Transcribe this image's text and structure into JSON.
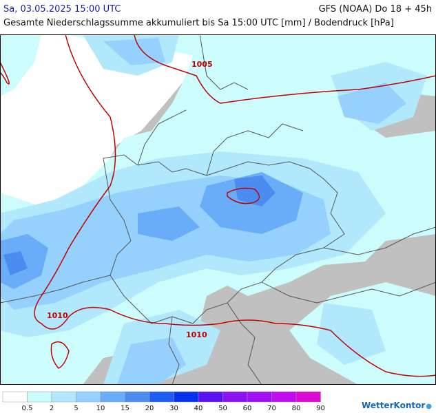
{
  "header": {
    "date": "Sa, 03.05.2025 15:00 UTC",
    "model": "GFS (NOAA) Do 18 + 45h",
    "subtitle": "Gesamte Niederschlagssumme akkumuliert bis Sa 15:00 UTC [mm] / Bodendruck [hPa]"
  },
  "legend": {
    "colors": [
      "#ffffff",
      "#ccfcfc",
      "#b1e8fc",
      "#96d0fc",
      "#69acf8",
      "#4b8cf0",
      "#1c5cf0",
      "#0433f0",
      "#5a10f0",
      "#8a12f0",
      "#a20ef2",
      "#c00cee",
      "#dc0ad2"
    ],
    "labels": [
      "0.5",
      "2",
      "5",
      "10",
      "15",
      "20",
      "30",
      "40",
      "50",
      "60",
      "70",
      "80",
      "90"
    ]
  },
  "isobars": [
    {
      "value": "1005"
    },
    {
      "value": "1010"
    },
    {
      "value": "1010"
    }
  ],
  "brand": "WetterKontor",
  "colors": {
    "land": "#c0c0c0",
    "sea": "#ffffff",
    "isobar": "#c00000",
    "border": "#555555"
  }
}
